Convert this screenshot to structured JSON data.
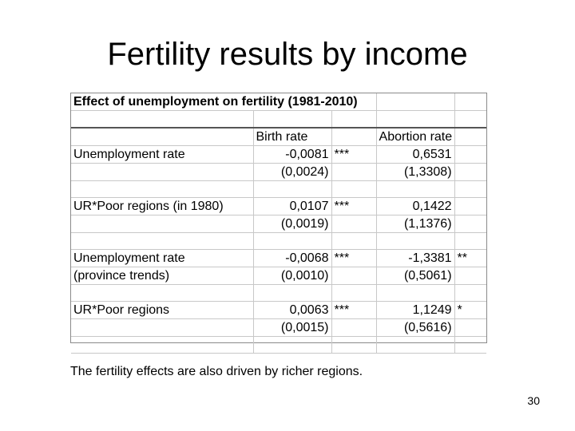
{
  "slide": {
    "title": "Fertility results by income",
    "caption": "The fertility effects are also driven by richer regions.",
    "page_number": "30"
  },
  "table": {
    "title": "Effect of unemployment on fertility (1981-2010)",
    "headers": {
      "birth_rate": "Birth rate",
      "abortion_rate": "Abortion rate"
    },
    "rows": [
      {
        "label": "Unemployment rate",
        "label2": "",
        "birth": "-0,0081",
        "birth_stars": "***",
        "birth_se": "(0,0024)",
        "abortion": "0,6531",
        "abortion_stars": "",
        "abortion_se": "(1,3308)"
      },
      {
        "label": "UR*Poor regions (in 1980)",
        "label2": "",
        "birth": "0,0107",
        "birth_stars": "***",
        "birth_se": "(0,0019)",
        "abortion": "0,1422",
        "abortion_stars": "",
        "abortion_se": "(1,1376)"
      },
      {
        "label": "Unemployment rate",
        "label2": "(province trends)",
        "birth": "-0,0068",
        "birth_stars": "***",
        "birth_se": "(0,0010)",
        "abortion": "-1,3381",
        "abortion_stars": "**",
        "abortion_se": "(0,5061)"
      },
      {
        "label": "UR*Poor regions",
        "label2": "",
        "birth": "0,0063",
        "birth_stars": "***",
        "birth_se": "(0,0015)",
        "abortion": "1,1249",
        "abortion_stars": "*",
        "abortion_se": "(0,5616)"
      }
    ]
  }
}
